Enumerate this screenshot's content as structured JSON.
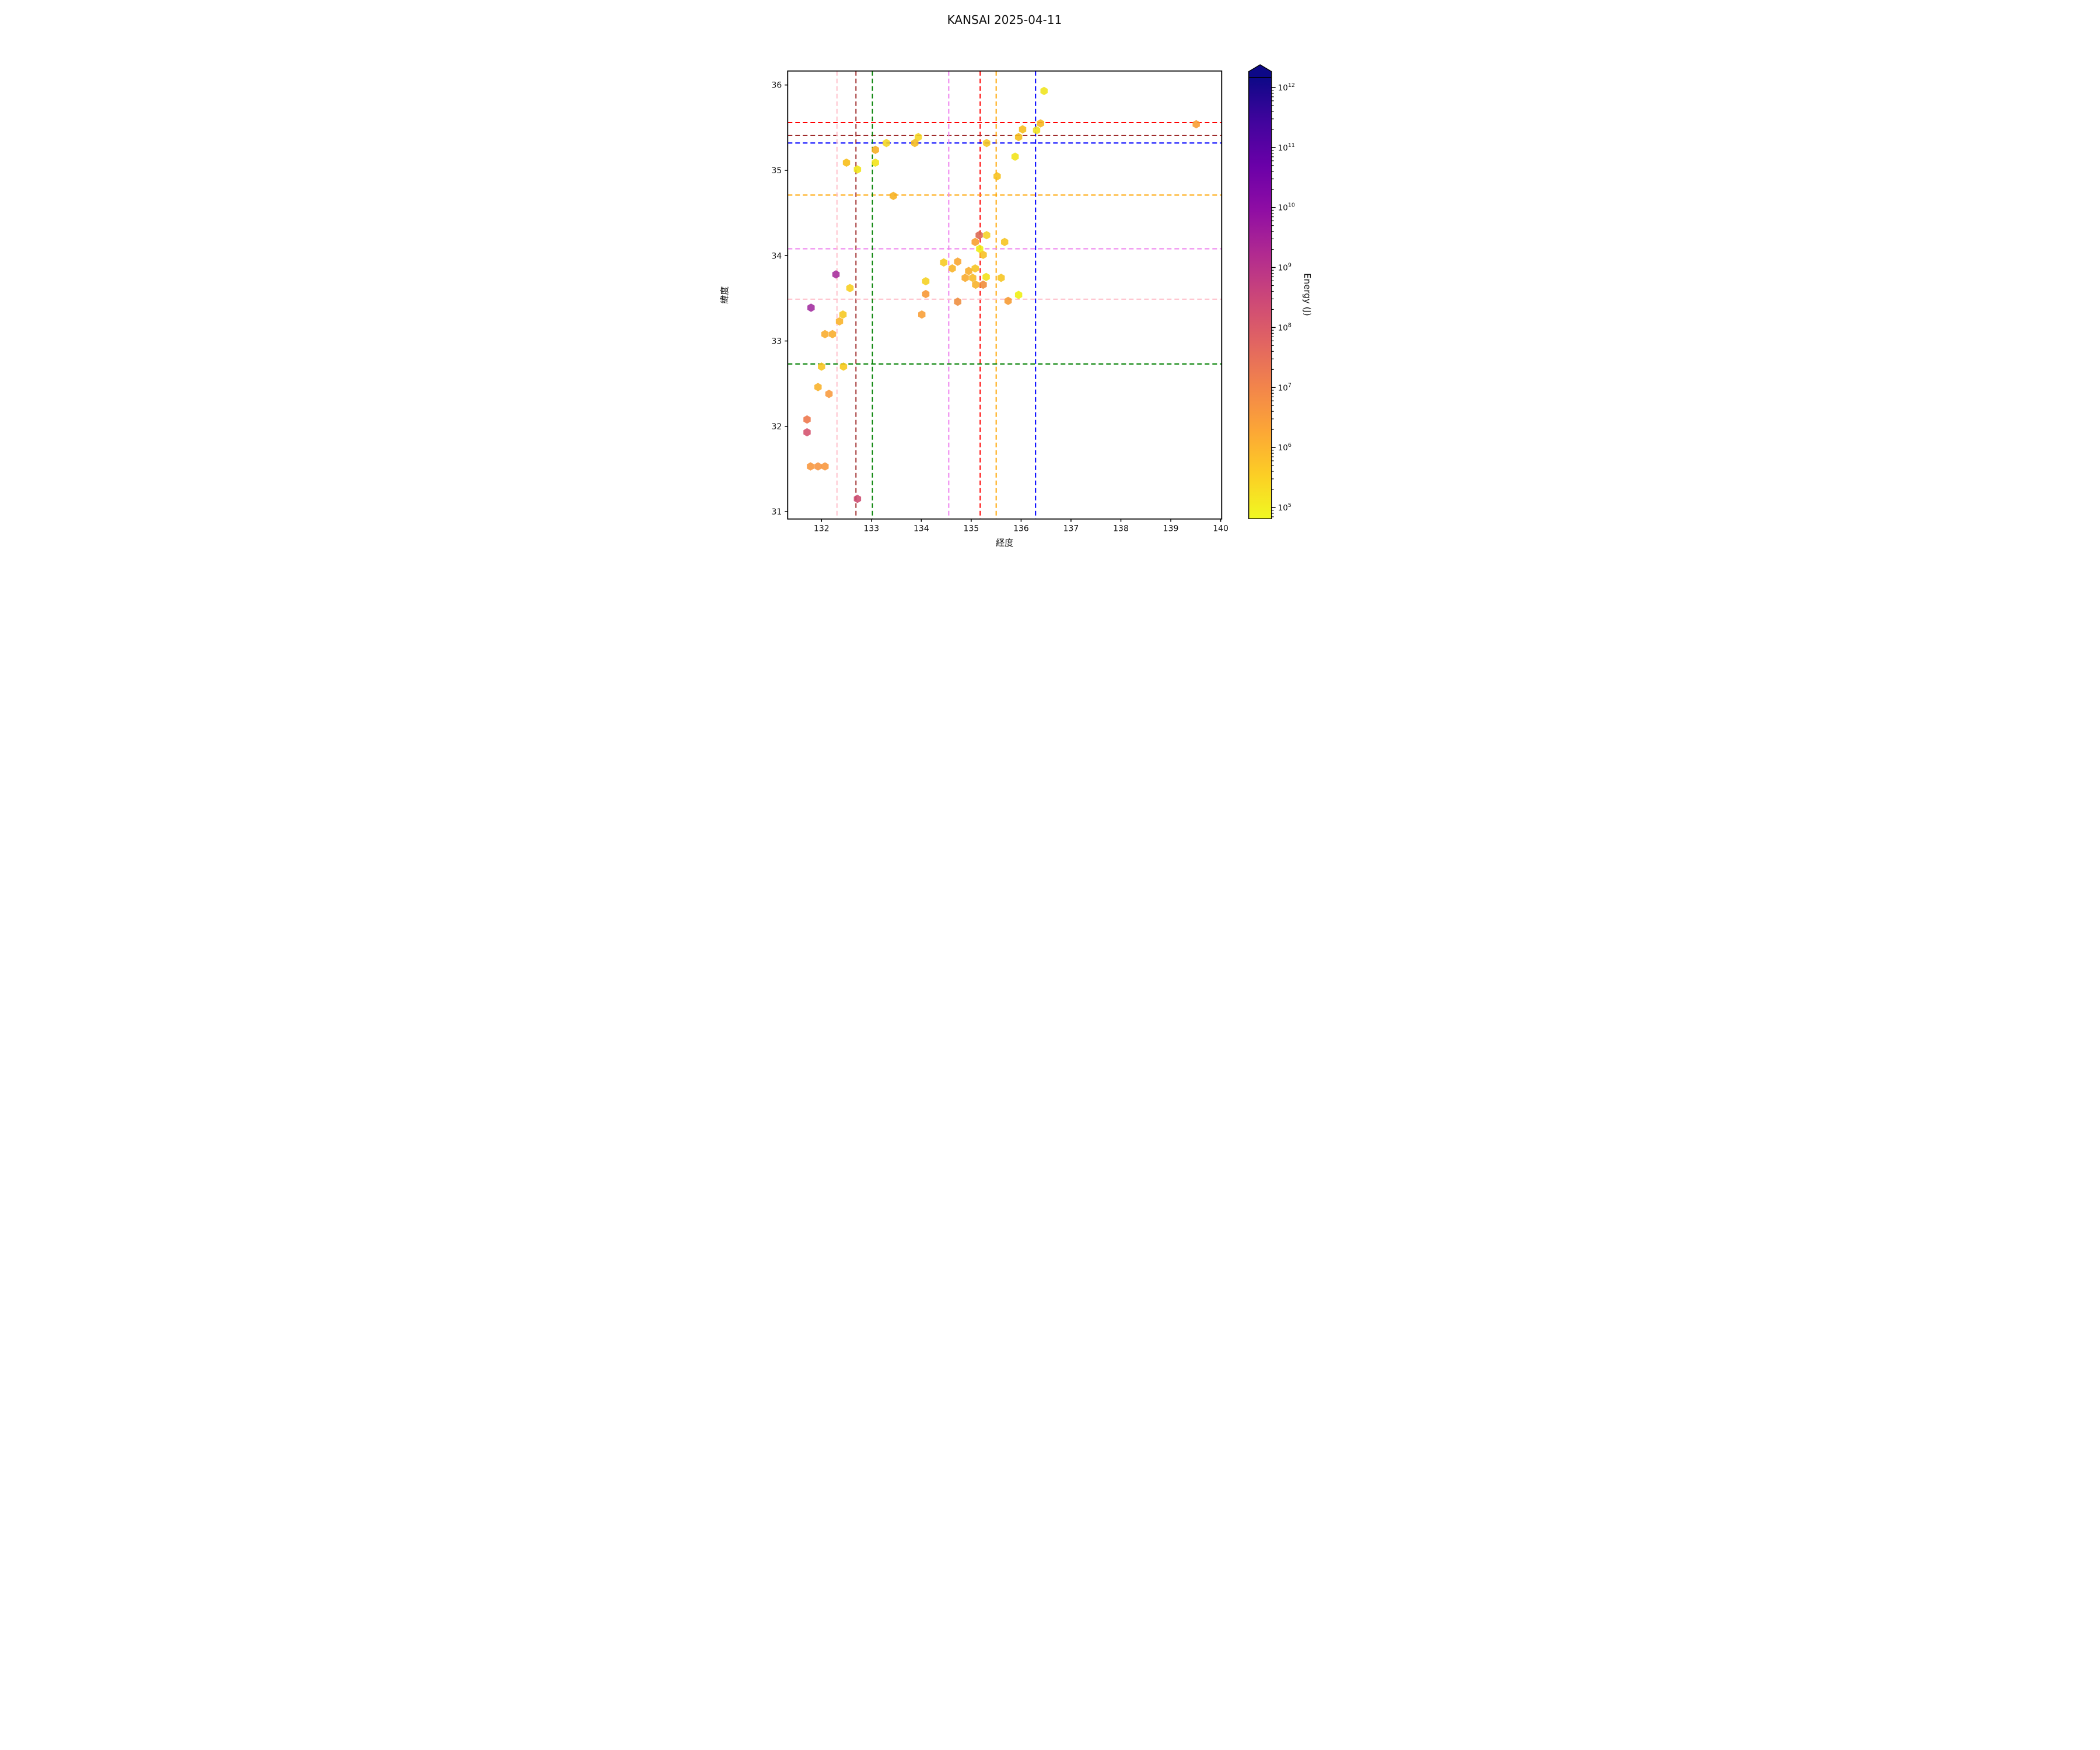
{
  "title": "KANSAI 2025-04-11",
  "axes": {
    "xlabel": "経度",
    "ylabel": "緯度"
  },
  "colorbar": {
    "label": "Energy (J)",
    "tick_exponents": [
      12,
      11,
      10,
      9,
      8,
      7,
      6,
      5
    ],
    "gradient_top_to_bottom": [
      "#0d0887",
      "#41049d",
      "#6a00a8",
      "#8f0da4",
      "#b12a90",
      "#cc4778",
      "#e16462",
      "#f2844b",
      "#fca636",
      "#fcce25",
      "#f0f921"
    ],
    "arrow_color": "#0d0887"
  },
  "chart_data": {
    "type": "scatter",
    "title": "KANSAI 2025-04-11",
    "xlabel": "経度",
    "ylabel": "緯度",
    "xlim": [
      131.322,
      140.02
    ],
    "ylim": [
      30.914,
      36.164
    ],
    "xticks": [
      132,
      133,
      134,
      135,
      136,
      137,
      138,
      139,
      140
    ],
    "yticks": [
      31,
      32,
      33,
      34,
      35,
      36
    ],
    "grid": false,
    "marker": "hexagon",
    "color_scale": {
      "label": "Energy (J)",
      "scale": "log",
      "min_exp": 5,
      "max_exp": 12,
      "colormap": "plasma_r",
      "extend": "max"
    },
    "crosshairs": [
      {
        "name": "red",
        "color": "#ff0000",
        "lon": 135.18,
        "lat": 35.56
      },
      {
        "name": "darkred",
        "color": "#9e2a2a",
        "lon": 132.69,
        "lat": 35.41
      },
      {
        "name": "blue",
        "color": "#0000ff",
        "lon": 136.29,
        "lat": 35.32
      },
      {
        "name": "orange",
        "color": "#ffa500",
        "lon": 135.5,
        "lat": 34.71
      },
      {
        "name": "violet",
        "color": "#ee82ee",
        "lon": 134.55,
        "lat": 34.08
      },
      {
        "name": "pink",
        "color": "#ffc0cb",
        "lon": 132.31,
        "lat": 33.49
      },
      {
        "name": "green",
        "color": "#008000",
        "lon": 133.02,
        "lat": 32.73
      }
    ],
    "points": [
      {
        "lon": 136.46,
        "lat": 35.93,
        "color": "#efe419"
      },
      {
        "lon": 136.39,
        "lat": 35.55,
        "color": "#f6b71c"
      },
      {
        "lon": 136.31,
        "lat": 35.47,
        "color": "#efe01c"
      },
      {
        "lon": 136.03,
        "lat": 35.48,
        "color": "#f5bc18"
      },
      {
        "lon": 135.95,
        "lat": 35.39,
        "color": "#f5bc18"
      },
      {
        "lon": 135.88,
        "lat": 35.16,
        "color": "#f1e214"
      },
      {
        "lon": 139.51,
        "lat": 35.54,
        "color": "#f89c30"
      },
      {
        "lon": 135.31,
        "lat": 35.32,
        "color": "#f6c71e"
      },
      {
        "lon": 135.52,
        "lat": 34.93,
        "color": "#f7c01a"
      },
      {
        "lon": 133.94,
        "lat": 35.39,
        "color": "#f5d520"
      },
      {
        "lon": 133.87,
        "lat": 35.32,
        "color": "#f5ba1b"
      },
      {
        "lon": 133.3,
        "lat": 35.32,
        "color": "#f3d51e"
      },
      {
        "lon": 133.08,
        "lat": 35.24,
        "color": "#f7ad1e"
      },
      {
        "lon": 133.08,
        "lat": 35.09,
        "color": "#f2e215"
      },
      {
        "lon": 132.5,
        "lat": 35.09,
        "color": "#f7bc13"
      },
      {
        "lon": 132.72,
        "lat": 35.01,
        "color": "#f0e414"
      },
      {
        "lon": 133.44,
        "lat": 34.7,
        "color": "#f7b01e"
      },
      {
        "lon": 135.16,
        "lat": 34.24,
        "color": "#db654f"
      },
      {
        "lon": 135.31,
        "lat": 34.24,
        "color": "#f5d122"
      },
      {
        "lon": 135.08,
        "lat": 34.16,
        "color": "#f89c2a"
      },
      {
        "lon": 135.67,
        "lat": 34.16,
        "color": "#f6c41e"
      },
      {
        "lon": 135.17,
        "lat": 34.08,
        "color": "#eeee10"
      },
      {
        "lon": 135.24,
        "lat": 34.01,
        "color": "#f7bf1e"
      },
      {
        "lon": 134.45,
        "lat": 33.92,
        "color": "#f6c91e"
      },
      {
        "lon": 134.73,
        "lat": 33.93,
        "color": "#f8a42c"
      },
      {
        "lon": 134.62,
        "lat": 33.85,
        "color": "#f8b324"
      },
      {
        "lon": 134.95,
        "lat": 33.82,
        "color": "#f8ab28"
      },
      {
        "lon": 135.08,
        "lat": 33.85,
        "color": "#f6c31e"
      },
      {
        "lon": 134.88,
        "lat": 33.74,
        "color": "#f8a82a"
      },
      {
        "lon": 135.03,
        "lat": 33.74,
        "color": "#f7ba22"
      },
      {
        "lon": 135.3,
        "lat": 33.75,
        "color": "#f2e114"
      },
      {
        "lon": 135.6,
        "lat": 33.74,
        "color": "#f6c41e"
      },
      {
        "lon": 135.09,
        "lat": 33.66,
        "color": "#f7b126"
      },
      {
        "lon": 135.24,
        "lat": 33.66,
        "color": "#f08a34"
      },
      {
        "lon": 135.95,
        "lat": 33.54,
        "color": "#eeef0f"
      },
      {
        "lon": 135.74,
        "lat": 33.47,
        "color": "#f6992f"
      },
      {
        "lon": 134.73,
        "lat": 33.46,
        "color": "#ee8c3c"
      },
      {
        "lon": 134.09,
        "lat": 33.7,
        "color": "#f5d01e"
      },
      {
        "lon": 134.09,
        "lat": 33.55,
        "color": "#f79531"
      },
      {
        "lon": 134.01,
        "lat": 33.31,
        "color": "#f89d33"
      },
      {
        "lon": 132.29,
        "lat": 33.78,
        "color": "#a62a9a"
      },
      {
        "lon": 132.57,
        "lat": 33.62,
        "color": "#f7ce1c"
      },
      {
        "lon": 131.79,
        "lat": 33.39,
        "color": "#a02a9e"
      },
      {
        "lon": 132.43,
        "lat": 33.31,
        "color": "#f6c71e"
      },
      {
        "lon": 132.36,
        "lat": 33.23,
        "color": "#f9b225"
      },
      {
        "lon": 132.07,
        "lat": 33.08,
        "color": "#f8ab2a"
      },
      {
        "lon": 132.22,
        "lat": 33.08,
        "color": "#f8ab2a"
      },
      {
        "lon": 132.0,
        "lat": 32.7,
        "color": "#f7c41f"
      },
      {
        "lon": 132.44,
        "lat": 32.7,
        "color": "#f7c818"
      },
      {
        "lon": 131.93,
        "lat": 32.46,
        "color": "#f8b027"
      },
      {
        "lon": 132.15,
        "lat": 32.38,
        "color": "#f8993b"
      },
      {
        "lon": 131.71,
        "lat": 32.08,
        "color": "#ed7448"
      },
      {
        "lon": 131.71,
        "lat": 31.93,
        "color": "#d4506c"
      },
      {
        "lon": 131.78,
        "lat": 31.53,
        "color": "#f8953a"
      },
      {
        "lon": 131.93,
        "lat": 31.53,
        "color": "#f69440"
      },
      {
        "lon": 132.07,
        "lat": 31.53,
        "color": "#f8953a"
      },
      {
        "lon": 132.72,
        "lat": 31.15,
        "color": "#cc4a6e"
      }
    ]
  }
}
